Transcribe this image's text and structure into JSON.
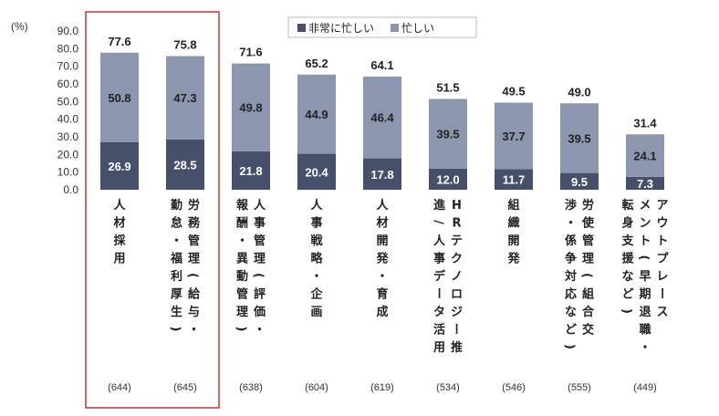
{
  "chart_data": {
    "type": "bar",
    "stacked": true,
    "ylabel": "(%)",
    "ylim": [
      0,
      90
    ],
    "yticks": [
      "0.0",
      "10.0",
      "20.0",
      "30.0",
      "40.0",
      "50.0",
      "60.0",
      "70.0",
      "80.0",
      "90.0"
    ],
    "grid": false,
    "legend_position": "top-right",
    "categories": [
      "人材採用",
      "労務管理（給与・勤怠・福利厚生）",
      "人事管理（評価・報酬・異動管理）",
      "人事戦略・企画",
      "人材開発・育成",
      "HRテクノロジー推進/人事データ活用",
      "組織開発",
      "労使管理（組合交渉・係争対応など）",
      "アウトプレースメント（早期退職・転身支援など）"
    ],
    "category_columns": [
      [
        "人材採用"
      ],
      [
        "労務管理（給与・",
        "勤怠・福利厚生）"
      ],
      [
        "人事管理（評価・",
        "報酬・異動管理）"
      ],
      [
        "人事戦略・企画"
      ],
      [
        "人材開発・育成"
      ],
      [
        "HRテクノロジー推",
        "進/人事データ活用"
      ],
      [
        "組織開発"
      ],
      [
        "労使管理（組合交",
        "渉・係争対応など）"
      ],
      [
        "アウトプレース",
        "メント（早期退職・",
        "転身支援など）"
      ]
    ],
    "series": [
      {
        "name": "非常に忙しい",
        "color": "#46506a",
        "label_color": "#ffffff",
        "values": [
          26.9,
          28.5,
          21.8,
          20.4,
          17.8,
          12.0,
          11.7,
          9.5,
          7.3
        ]
      },
      {
        "name": "忙しい",
        "color": "#8c96ae",
        "label_color": "#222222",
        "values": [
          50.8,
          47.3,
          49.8,
          44.9,
          46.4,
          39.5,
          37.7,
          39.5,
          24.1
        ]
      }
    ],
    "totals": [
      77.6,
      75.8,
      71.6,
      65.2,
      64.1,
      51.5,
      49.5,
      49.0,
      31.4
    ],
    "n_labels": [
      "(644)",
      "(645)",
      "(638)",
      "(604)",
      "(619)",
      "(534)",
      "(546)",
      "(555)",
      "(449)"
    ],
    "highlight": {
      "categories": [
        0,
        1
      ],
      "color": "#cc3333"
    }
  }
}
